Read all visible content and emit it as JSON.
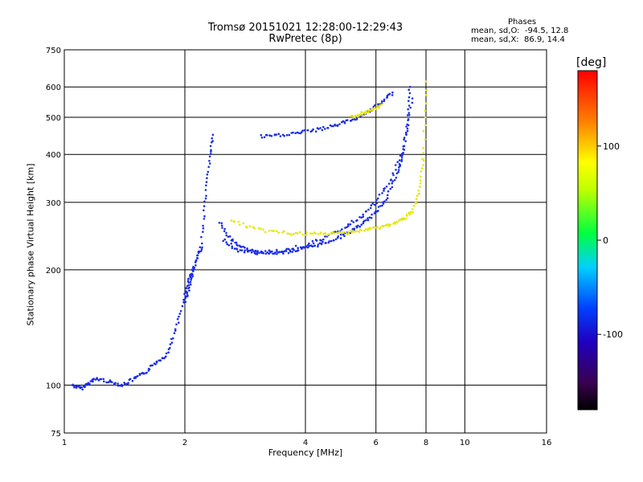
{
  "chart_data": {
    "type": "scatter",
    "title": "Tromsø 20151021 12:28:00-12:29:43",
    "subtitle": "RwPretec (8p)",
    "xlabel": "Frequency [MHz]",
    "ylabel": "Stationary phase Virtual Height [km]",
    "x_scale": "log",
    "y_scale": "log",
    "xlim": [
      1,
      16
    ],
    "ylim": [
      75,
      750
    ],
    "x_ticks": [
      "1",
      "2",
      "4",
      "6",
      "8",
      "10",
      "16"
    ],
    "y_ticks": [
      "75",
      "100",
      "200",
      "300",
      "400",
      "500",
      "600",
      "750"
    ],
    "grid": true,
    "phase_stats": {
      "title": "Phases",
      "o_mode": "mean, sd,O:  -94.5, 12.8",
      "x_mode": "mean, sd,X:  86.9, 14.4"
    },
    "colorbar": {
      "label": "[deg]",
      "ticks": [
        "100",
        "0",
        "-100"
      ],
      "range": [
        -180,
        180
      ]
    },
    "colors": {
      "o_trace": "#1a2ee6",
      "x_trace": "#e6e600",
      "gridline": "#000000"
    },
    "series": [
      {
        "mode": "O",
        "phase_mean": -94.5,
        "traces": [
          {
            "x": [
              1.05,
              1.1,
              1.15,
              1.2,
              1.3,
              1.4,
              1.5,
              1.6,
              1.7,
              1.8,
              1.9,
              2.0,
              2.05,
              2.1
            ],
            "y": [
              100,
              98,
              101,
              104,
              102,
              100,
              104,
              108,
              115,
              120,
              140,
              170,
              190,
              200
            ]
          },
          {
            "x": [
              2.0,
              2.05,
              2.1,
              2.15,
              2.2,
              2.25,
              2.3,
              2.35
            ],
            "y": [
              165,
              180,
              200,
              215,
              230,
              300,
              380,
              450
            ]
          },
          {
            "x": [
              2.45,
              2.6,
              2.8,
              3.0,
              3.2,
              3.5,
              3.8,
              4.1,
              4.4,
              4.8,
              5.2,
              5.6,
              6.0,
              6.4,
              6.8,
              7.0,
              7.2,
              7.3
            ],
            "y": [
              265,
              240,
              228,
              222,
              221,
              222,
              225,
              229,
              234,
              242,
              252,
              265,
              282,
              310,
              360,
              400,
              480,
              600
            ]
          },
          {
            "x": [
              2.5,
              2.7,
              3.0,
              3.5,
              4.0,
              4.5,
              5.0,
              5.5,
              6.0,
              6.5,
              7.0,
              7.4
            ],
            "y": [
              240,
              225,
              222,
              224,
              232,
              243,
              257,
              275,
              300,
              340,
              410,
              560
            ]
          },
          {
            "x": [
              3.1,
              3.4,
              3.8,
              4.2,
              4.6,
              5.0,
              5.4,
              5.8,
              6.2,
              6.6
            ],
            "y": [
              445,
              448,
              455,
              462,
              472,
              485,
              500,
              520,
              545,
              580
            ]
          }
        ]
      },
      {
        "mode": "X",
        "phase_mean": 86.9,
        "traces": [
          {
            "x": [
              2.6,
              3.0,
              3.5,
              4.0,
              4.5,
              5.0,
              5.5,
              6.0,
              6.5,
              7.0,
              7.4,
              7.7,
              7.9,
              8.0
            ],
            "y": [
              270,
              255,
              250,
              248,
              248,
              250,
              253,
              257,
              262,
              270,
              285,
              320,
              400,
              620
            ]
          },
          {
            "x": [
              5.2,
              5.5,
              5.8,
              6.2
            ],
            "y": [
              500,
              510,
              520,
              540
            ]
          }
        ]
      }
    ]
  }
}
